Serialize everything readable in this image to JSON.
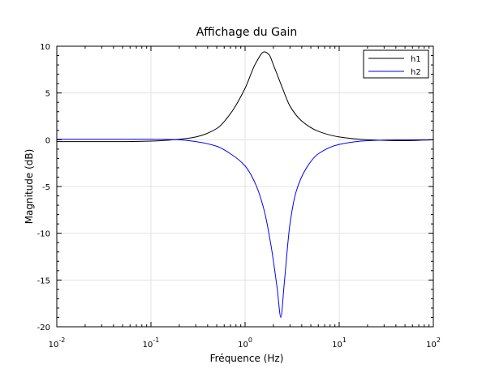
{
  "chart_data": {
    "type": "line",
    "title": "Affichage du Gain",
    "xlabel": "Fréquence (Hz)",
    "ylabel": "Magnitude (dB)",
    "xscale": "log",
    "xlim": [
      0.01,
      100
    ],
    "ylim": [
      -20,
      10
    ],
    "x_ticks": [
      {
        "value": 0.01,
        "base": "10",
        "exp": "-2"
      },
      {
        "value": 0.1,
        "base": "10",
        "exp": "-1"
      },
      {
        "value": 1,
        "base": "10",
        "exp": "0"
      },
      {
        "value": 10,
        "base": "10",
        "exp": "1"
      },
      {
        "value": 100,
        "base": "10",
        "exp": "2"
      }
    ],
    "y_ticks": [
      "10",
      "5",
      "0",
      "-5",
      "-10",
      "-15",
      "-20"
    ],
    "y_tick_values": [
      10,
      5,
      0,
      -5,
      -10,
      -15,
      -20
    ],
    "grid": true,
    "legend_position": "top-right",
    "series": [
      {
        "name": "h1",
        "color": "#000000",
        "x": [
          0.01,
          0.05,
          0.1,
          0.2,
          0.3,
          0.5,
          0.7,
          1.0,
          1.3,
          1.6,
          1.8,
          2.0,
          2.5,
          3.0,
          4.0,
          6.0,
          10,
          20,
          50,
          100
        ],
        "y": [
          -0.2,
          -0.2,
          -0.15,
          0.05,
          0.3,
          1.2,
          2.8,
          5.5,
          8.2,
          9.4,
          9.1,
          8.0,
          5.5,
          3.6,
          2.0,
          0.9,
          0.3,
          0.0,
          -0.1,
          0.0
        ]
      },
      {
        "name": "h2",
        "color": "#0000ff",
        "x": [
          0.01,
          0.05,
          0.1,
          0.2,
          0.3,
          0.5,
          0.7,
          1.0,
          1.3,
          1.6,
          1.9,
          2.2,
          2.4,
          2.6,
          3.0,
          3.5,
          4.5,
          6.0,
          10,
          20,
          50,
          100
        ],
        "y": [
          0.05,
          0.05,
          0.05,
          0.0,
          -0.2,
          -0.7,
          -1.5,
          -2.8,
          -4.8,
          -7.6,
          -11.5,
          -16.0,
          -19.0,
          -15.5,
          -9.0,
          -5.5,
          -3.0,
          -1.5,
          -0.5,
          -0.1,
          0.0,
          0.0
        ]
      }
    ]
  }
}
